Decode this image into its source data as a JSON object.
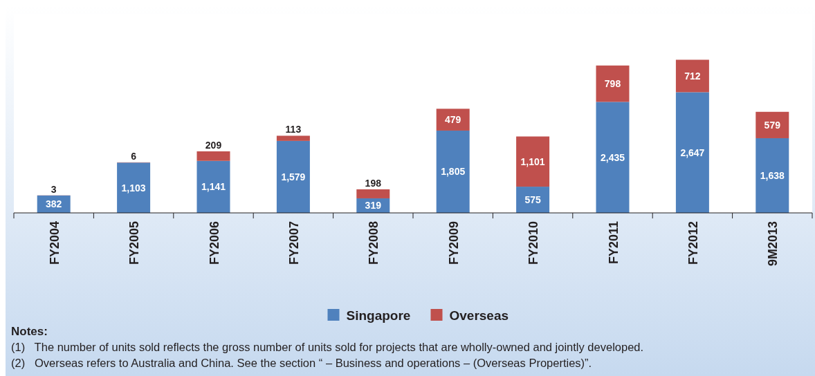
{
  "chart_data": {
    "type": "bar",
    "stacked": true,
    "categories": [
      "FY2004",
      "FY2005",
      "FY2006",
      "FY2007",
      "FY2008",
      "FY2009",
      "FY2010",
      "FY2011",
      "FY2012",
      "9M2013"
    ],
    "series": [
      {
        "name": "Singapore",
        "color": "#4f81bd",
        "values": [
          382,
          1103,
          1141,
          1579,
          319,
          1805,
          575,
          2435,
          2647,
          1638
        ],
        "value_labels": [
          "382",
          "1,103",
          "1,141",
          "1,579",
          "319",
          "1,805",
          "575",
          "2,435",
          "2,647",
          "1,638"
        ]
      },
      {
        "name": "Overseas",
        "color": "#c0504d",
        "values": [
          3,
          6,
          209,
          113,
          198,
          479,
          1101,
          798,
          712,
          579
        ],
        "value_labels": [
          "3",
          "6",
          "209",
          "113",
          "198",
          "479",
          "1,101",
          "798",
          "712",
          "579"
        ]
      }
    ],
    "legend": "bottom",
    "annotations": [
      "Notes:",
      "(1)   The number of units sold reflects the gross number of units sold for projects that are wholly-owned and jointly developed.",
      "(2)   Overseas refers to Australia and China. See the section “ – Business and operations – (Overseas Properties)”."
    ]
  }
}
